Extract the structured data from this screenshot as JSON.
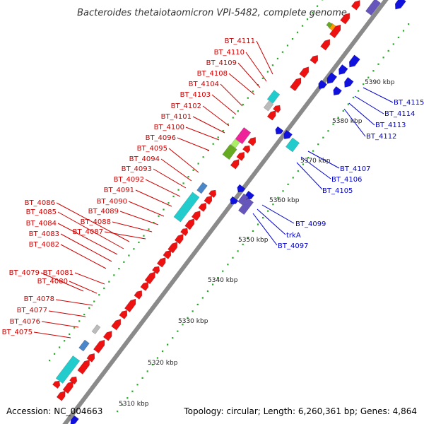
{
  "title": "Bacteroides thetaiotaomicron VPI-5482, complete genome",
  "footer": {
    "accession": "Accession: NC_004663",
    "topology": "Topology: circular; Length: 6,260,361 bp; Genes: 4,864"
  },
  "colors": {
    "backbone": "#8a8a8a",
    "forward_gene": "#ee1111",
    "reverse_gene": "#1111dd",
    "cyan_feature": "#22cccc",
    "steel_feature": "#4a86c8",
    "gray_feature": "#bbbbbb",
    "magenta_feature": "#ee2299",
    "olive_feature": "#66aa22",
    "lightgreen_feature": "#aaee66",
    "purple_feature": "#6655bb",
    "orange_feature": "#ff9900",
    "dots": "#22aa22",
    "label_red": "#cc0000",
    "label_blue": "#0000cc"
  },
  "kbp_ticks": [
    "5310 kbp",
    "5320 kbp",
    "5330 kbp",
    "5340 kbp",
    "5350 kbp",
    "5360 kbp",
    "5370 kbp",
    "5380 kbp",
    "5390 kbp"
  ],
  "left_labels": [
    "BT_4075",
    "BT_4076",
    "BT_4077",
    "BT_4078",
    "BT_4079",
    "BT_4080",
    "BT_4081",
    "BT_4082",
    "BT_4083",
    "BT_4084",
    "BT_4085",
    "BT_4086",
    "BT_4087",
    "BT_4088",
    "BT_4089",
    "BT_4090",
    "BT_4091",
    "BT_4092",
    "BT_4093",
    "BT_4094",
    "BT_4095",
    "BT_4096",
    "BT_4100",
    "BT_4101",
    "BT_4102",
    "BT_4103",
    "BT_4104",
    "BT_4108",
    "BT_4109",
    "BT_4110",
    "BT_4111"
  ],
  "right_labels": [
    "BT_4097",
    "trkA",
    "BT_4099",
    "BT_4105",
    "BT_4106",
    "BT_4107",
    "BT_4112",
    "BT_4113",
    "BT_4114",
    "BT_4115"
  ]
}
